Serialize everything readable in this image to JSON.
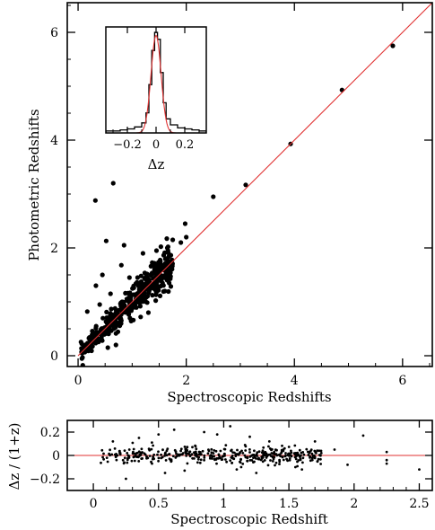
{
  "chart_data": [
    {
      "type": "scatter",
      "panel": "main",
      "xlabel": "Spectroscopic Redshifts",
      "ylabel": "Photometric Redshifts",
      "xlim": [
        -0.2,
        6.55
      ],
      "ylim": [
        -0.2,
        6.55
      ],
      "xticks": [
        0,
        2,
        4,
        6
      ],
      "yticks": [
        0,
        2,
        4,
        6
      ],
      "line_color": "#e03030",
      "point_color": "#000000",
      "reference_line": {
        "x": [
          0,
          6.55
        ],
        "y": [
          0,
          6.55
        ]
      },
      "outliers": [
        {
          "x": 0.32,
          "y": 2.88
        },
        {
          "x": 0.65,
          "y": 3.2
        },
        {
          "x": 0.52,
          "y": 2.13
        },
        {
          "x": 0.85,
          "y": 2.05
        },
        {
          "x": 0.8,
          "y": 1.68
        },
        {
          "x": 0.45,
          "y": 1.5
        },
        {
          "x": 0.33,
          "y": 1.3
        },
        {
          "x": 0.17,
          "y": 0.82
        },
        {
          "x": 1.2,
          "y": 1.9
        },
        {
          "x": 1.45,
          "y": 1.95
        },
        {
          "x": 1.65,
          "y": 2.0
        },
        {
          "x": 1.75,
          "y": 2.15
        },
        {
          "x": 1.9,
          "y": 2.1
        },
        {
          "x": 2.0,
          "y": 2.2
        },
        {
          "x": 1.98,
          "y": 2.45
        },
        {
          "x": 1.1,
          "y": 1.45
        },
        {
          "x": 0.95,
          "y": 1.45
        },
        {
          "x": 1.25,
          "y": 1.1
        },
        {
          "x": 1.55,
          "y": 1.6
        },
        {
          "x": 1.3,
          "y": 0.8
        },
        {
          "x": 0.7,
          "y": 0.2
        },
        {
          "x": 0.55,
          "y": 0.15
        },
        {
          "x": 1.05,
          "y": 0.9
        },
        {
          "x": 0.6,
          "y": 1.15
        },
        {
          "x": 0.4,
          "y": 0.95
        },
        {
          "x": 2.5,
          "y": 2.95
        },
        {
          "x": 3.1,
          "y": 3.17
        },
        {
          "x": 3.93,
          "y": 3.93
        },
        {
          "x": 4.88,
          "y": 4.93
        },
        {
          "x": 5.82,
          "y": 5.75
        }
      ],
      "bulk": {
        "x_range": [
          0.05,
          1.75
        ],
        "scatter_sigma": 0.07,
        "count": 420
      }
    },
    {
      "type": "line",
      "panel": "inset-histogram",
      "xlabel": "Δz",
      "xlim": [
        -0.35,
        0.35
      ],
      "xticks": [
        -0.2,
        0,
        0.2
      ],
      "xtick_labels": [
        "−0.2",
        "0",
        "0.2"
      ],
      "histogram": {
        "bin_edges": [
          -0.35,
          -0.3,
          -0.25,
          -0.2,
          -0.15,
          -0.1,
          -0.07,
          -0.05,
          -0.03,
          -0.01,
          0.01,
          0.03,
          0.05,
          0.07,
          0.1,
          0.15,
          0.2,
          0.25,
          0.3,
          0.35
        ],
        "counts": [
          0.02,
          0.02,
          0.03,
          0.04,
          0.06,
          0.1,
          0.2,
          0.48,
          0.82,
          1.0,
          0.93,
          0.6,
          0.3,
          0.14,
          0.08,
          0.05,
          0.04,
          0.03,
          0.02
        ]
      },
      "gaussian_fit": {
        "mean": 0.0,
        "sigma": 0.035,
        "peak": 0.97,
        "color": "#e03030"
      }
    },
    {
      "type": "scatter",
      "panel": "residual",
      "xlabel": "Spectroscopic Redshift",
      "ylabel": "Δz / (1+z)",
      "xlim": [
        -0.2,
        2.6
      ],
      "ylim": [
        -0.3,
        0.3
      ],
      "xticks": [
        0,
        0.5,
        1,
        1.5,
        2,
        2.5
      ],
      "xtick_labels": [
        "0",
        "0.5",
        "1",
        "1.5",
        "2",
        "2.5"
      ],
      "yticks": [
        -0.2,
        0,
        0.2
      ],
      "ytick_labels": [
        "−0.2",
        "0",
        "0.2"
      ],
      "zero_line_color": "#e03030",
      "outliers": [
        {
          "x": 0.15,
          "y": 0.12
        },
        {
          "x": 0.25,
          "y": -0.2
        },
        {
          "x": 0.35,
          "y": 0.15
        },
        {
          "x": 0.5,
          "y": 0.18
        },
        {
          "x": 0.55,
          "y": -0.15
        },
        {
          "x": 0.62,
          "y": 0.22
        },
        {
          "x": 0.7,
          "y": -0.13
        },
        {
          "x": 0.85,
          "y": 0.2
        },
        {
          "x": 0.95,
          "y": 0.18
        },
        {
          "x": 1.05,
          "y": 0.25
        },
        {
          "x": 1.1,
          "y": -0.12
        },
        {
          "x": 1.2,
          "y": 0.16
        },
        {
          "x": 1.25,
          "y": -0.15
        },
        {
          "x": 1.35,
          "y": 0.12
        },
        {
          "x": 1.55,
          "y": -0.1
        },
        {
          "x": 1.7,
          "y": 0.12
        },
        {
          "x": 1.72,
          "y": -0.05
        },
        {
          "x": 1.85,
          "y": 0.05
        },
        {
          "x": 1.95,
          "y": -0.08
        },
        {
          "x": 2.07,
          "y": 0.17
        },
        {
          "x": 2.25,
          "y": -0.04
        },
        {
          "x": 2.25,
          "y": -0.07
        },
        {
          "x": 2.25,
          "y": 0.03
        },
        {
          "x": 2.5,
          "y": -0.12
        },
        {
          "x": 0.45,
          "y": -0.07
        },
        {
          "x": 0.8,
          "y": -0.06
        },
        {
          "x": 1.6,
          "y": -0.12
        }
      ],
      "bulk": {
        "x_range": [
          0.05,
          1.75
        ],
        "scatter_sigma": 0.035,
        "count": 420
      }
    }
  ]
}
